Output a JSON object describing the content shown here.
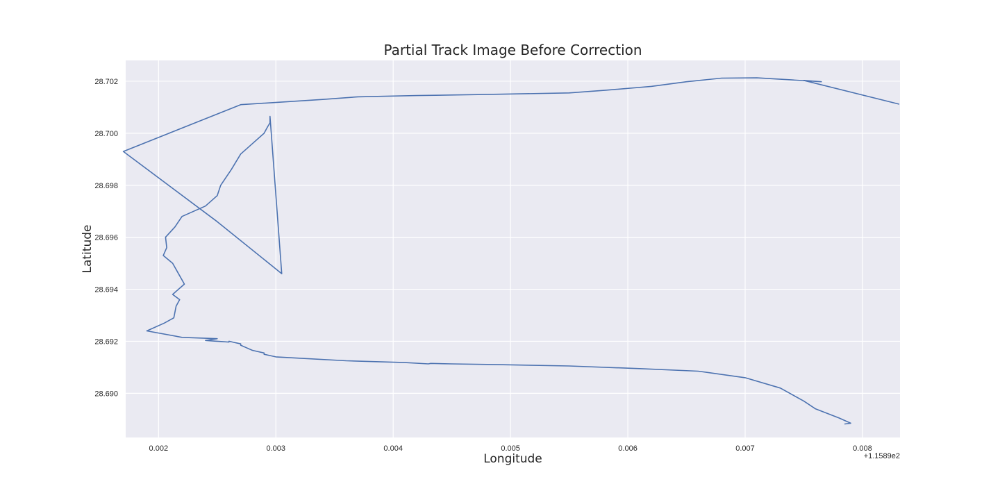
{
  "chart_data": {
    "type": "line",
    "title": "Partial Track Image Before Correction",
    "xlabel": "Longitude",
    "ylabel": "Latitude",
    "x_offset_label": "+1.1589e2",
    "grid": true,
    "style": {
      "background": "#eaeaf2",
      "grid_color": "#ffffff",
      "line_color": "#4c72b0"
    },
    "xlim": [
      115.89172,
      115.89832
    ],
    "ylim": [
      28.6883,
      28.7028
    ],
    "x_ticks": [
      {
        "value": 115.892,
        "label": "0.002"
      },
      {
        "value": 115.893,
        "label": "0.003"
      },
      {
        "value": 115.894,
        "label": "0.004"
      },
      {
        "value": 115.895,
        "label": "0.005"
      },
      {
        "value": 115.896,
        "label": "0.006"
      },
      {
        "value": 115.897,
        "label": "0.007"
      },
      {
        "value": 115.898,
        "label": "0.008"
      }
    ],
    "y_ticks": [
      {
        "value": 28.69,
        "label": "28.690"
      },
      {
        "value": 28.692,
        "label": "28.692"
      },
      {
        "value": 28.694,
        "label": "28.694"
      },
      {
        "value": 28.696,
        "label": "28.696"
      },
      {
        "value": 28.698,
        "label": "28.698"
      },
      {
        "value": 28.7,
        "label": "28.700"
      },
      {
        "value": 28.702,
        "label": "28.702"
      }
    ],
    "series": [
      {
        "x": [
          115.89831,
          115.8975,
          115.89765,
          115.8974,
          115.8971,
          115.8968,
          115.8965,
          115.8962,
          115.8958,
          115.8955,
          115.8949,
          115.8942,
          115.8937,
          115.8934,
          115.8927,
          115.8917,
          115.8925,
          115.89305,
          115.89295,
          115.89295,
          115.89293,
          115.8929,
          115.8928,
          115.8927,
          115.89262,
          115.89253,
          115.8925,
          115.8924,
          115.8923,
          115.8922,
          115.89214,
          115.89206,
          115.89207,
          115.89204,
          115.89212,
          115.89222,
          115.89212,
          115.89218,
          115.89215,
          115.89213,
          115.89205,
          115.8919,
          115.8922,
          115.8925,
          115.8924,
          115.8925,
          115.8926,
          115.8926,
          115.8927,
          115.8927,
          115.89275,
          115.8928,
          115.8929,
          115.8929,
          115.893,
          115.8932,
          115.8936,
          115.8941,
          115.8943,
          115.89432,
          115.8945,
          115.8949,
          115.8955,
          115.8961,
          115.8966,
          115.897,
          115.8973,
          115.8975,
          115.8976,
          115.8978,
          115.8979,
          115.89785
        ],
        "y": [
          28.70112,
          28.70203,
          28.70198,
          28.70205,
          28.70213,
          28.70212,
          28.70198,
          28.7018,
          28.70165,
          28.70155,
          28.7015,
          28.70145,
          28.7014,
          28.7013,
          28.7011,
          28.6993,
          28.6966,
          28.6946,
          28.70065,
          28.7004,
          28.70025,
          28.7,
          28.6996,
          28.6992,
          28.6986,
          28.698,
          28.6976,
          28.6972,
          28.697,
          28.6968,
          28.6964,
          28.696,
          28.6956,
          28.6953,
          28.695,
          28.6942,
          28.6938,
          28.6936,
          28.69335,
          28.6929,
          28.6927,
          28.6924,
          28.69215,
          28.6921,
          28.69203,
          28.692,
          28.69197,
          28.692,
          28.6919,
          28.69185,
          28.69175,
          28.69165,
          28.69155,
          28.6915,
          28.6914,
          28.69135,
          28.69125,
          28.69118,
          28.69113,
          28.69115,
          28.69113,
          28.6911,
          28.69105,
          28.69095,
          28.69085,
          28.6906,
          28.6902,
          28.6897,
          28.6894,
          28.68905,
          28.68885,
          28.68882
        ]
      }
    ]
  }
}
